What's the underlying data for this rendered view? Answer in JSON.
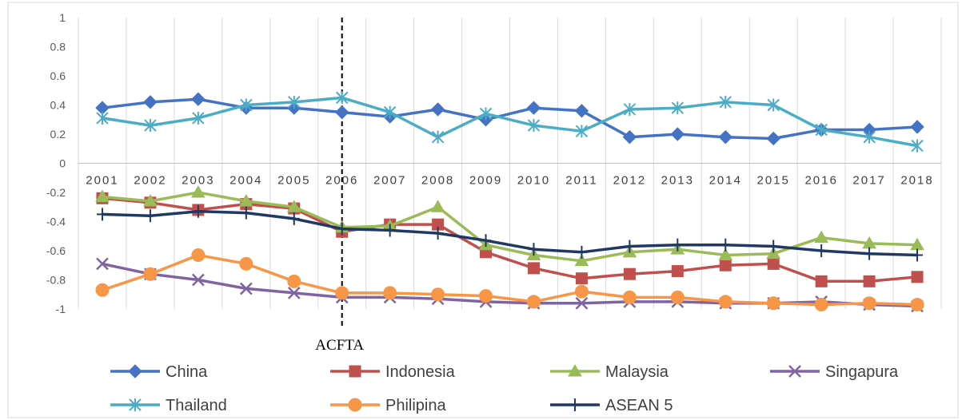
{
  "chart_data": {
    "type": "line",
    "title": "",
    "xlabel": "",
    "ylabel": "",
    "ylim": [
      -1,
      1
    ],
    "y_ticks": [
      "1",
      "0.8",
      "0.6",
      "0.4",
      "0.2",
      "0",
      "-0.2",
      "-0.4",
      "-0.6",
      "-0.8",
      "-1"
    ],
    "grid": "vertical",
    "legend_position": "bottom",
    "categories": [
      "2001",
      "2002",
      "2003",
      "2004",
      "2005",
      "2006",
      "2007",
      "2008",
      "2009",
      "2010",
      "2011",
      "2012",
      "2013",
      "2014",
      "2015",
      "2016",
      "2017",
      "2018"
    ],
    "series": [
      {
        "name": "China",
        "color": "#4472C4",
        "marker": "diamond",
        "values": [
          0.38,
          0.42,
          0.44,
          0.38,
          0.38,
          0.35,
          0.32,
          0.37,
          0.3,
          0.38,
          0.36,
          0.18,
          0.2,
          0.18,
          0.17,
          0.23,
          0.23,
          0.25
        ]
      },
      {
        "name": "Indonesia",
        "color": "#C0504D",
        "marker": "square",
        "values": [
          -0.24,
          -0.27,
          -0.32,
          -0.28,
          -0.31,
          -0.47,
          -0.42,
          -0.42,
          -0.61,
          -0.72,
          -0.79,
          -0.76,
          -0.74,
          -0.7,
          -0.69,
          -0.81,
          -0.81,
          -0.78
        ]
      },
      {
        "name": "Malaysia",
        "color": "#9BBB59",
        "marker": "triangle",
        "values": [
          -0.23,
          -0.26,
          -0.2,
          -0.26,
          -0.3,
          -0.44,
          -0.43,
          -0.3,
          -0.56,
          -0.63,
          -0.67,
          -0.61,
          -0.59,
          -0.63,
          -0.62,
          -0.51,
          -0.55,
          -0.56
        ]
      },
      {
        "name": "Singapura",
        "color": "#8064A2",
        "marker": "x",
        "values": [
          -0.69,
          -0.76,
          -0.8,
          -0.86,
          -0.89,
          -0.92,
          -0.92,
          -0.93,
          -0.95,
          -0.96,
          -0.96,
          -0.95,
          -0.95,
          -0.96,
          -0.96,
          -0.95,
          -0.97,
          -0.98
        ]
      },
      {
        "name": "Thailand",
        "color": "#4BACC6",
        "marker": "star",
        "values": [
          0.31,
          0.26,
          0.31,
          0.4,
          0.42,
          0.45,
          0.35,
          0.18,
          0.34,
          0.26,
          0.22,
          0.37,
          0.38,
          0.42,
          0.4,
          0.23,
          0.18,
          0.12
        ]
      },
      {
        "name": "Philipina",
        "color": "#F79646",
        "marker": "circle",
        "values": [
          -0.87,
          -0.76,
          -0.63,
          -0.69,
          -0.81,
          -0.89,
          -0.89,
          -0.9,
          -0.91,
          -0.95,
          -0.88,
          -0.92,
          -0.92,
          -0.95,
          -0.96,
          -0.97,
          -0.96,
          -0.97
        ]
      },
      {
        "name": "ASEAN 5",
        "color": "#1F3864",
        "marker": "plus",
        "values": [
          -0.35,
          -0.36,
          -0.33,
          -0.34,
          -0.38,
          -0.45,
          -0.46,
          -0.48,
          -0.53,
          -0.59,
          -0.61,
          -0.57,
          -0.56,
          -0.56,
          -0.57,
          -0.6,
          -0.62,
          -0.63
        ]
      }
    ],
    "annotations": [
      {
        "text": "ACFTA",
        "x": "2006",
        "style": "dashed vertical line"
      }
    ]
  }
}
